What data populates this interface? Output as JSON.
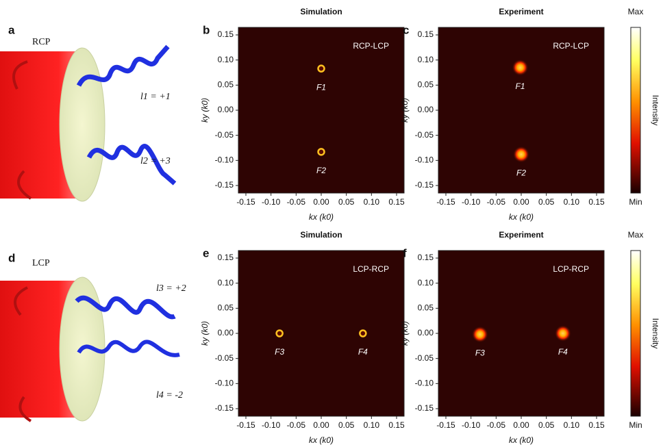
{
  "illustrations": [
    {
      "panel": "a",
      "polarization": "RCP",
      "beams": [
        "l1 = +1",
        "l2 = +3"
      ]
    },
    {
      "panel": "d",
      "polarization": "LCP",
      "beams": [
        "l3 = +2",
        "l4 = -2"
      ]
    }
  ],
  "chart_data": [
    {
      "type": "scatter",
      "panel": "b",
      "title": "Simulation",
      "annotation": "RCP-LCP",
      "x": [
        0,
        0
      ],
      "y": [
        0.083,
        -0.083
      ],
      "point_labels": [
        "F1",
        "F2"
      ],
      "xlabel": "kx (k0)",
      "ylabel": "ky (k0)",
      "xlim": [
        -0.165,
        0.165
      ],
      "ylim": [
        -0.165,
        0.165
      ],
      "xticks": [
        -0.15,
        {
          "value": -0.1,
          "label": "-0.10"
        },
        -0.05,
        {
          "value": 0,
          "label": "0.00"
        },
        0.05,
        {
          "value": 0.1,
          "label": "0.10"
        },
        0.15
      ],
      "yticks": [
        -0.15,
        {
          "value": -0.1,
          "label": "-0.10"
        },
        -0.05,
        {
          "value": 0,
          "label": "0.00"
        },
        0.05,
        {
          "value": 0.1,
          "label": "0.10"
        },
        0.15
      ]
    },
    {
      "type": "scatter",
      "panel": "c",
      "title": "Experiment",
      "annotation": "RCP-LCP",
      "x": [
        -0.002,
        0
      ],
      "y": [
        0.085,
        -0.088
      ],
      "point_labels": [
        "F1",
        "F2"
      ],
      "xlabel": "kx (k0)",
      "ylabel": "ky (k0)",
      "xlim": [
        -0.165,
        0.165
      ],
      "ylim": [
        -0.165,
        0.165
      ],
      "xticks": [
        -0.15,
        {
          "value": -0.1,
          "label": "-0.10"
        },
        -0.05,
        {
          "value": 0,
          "label": "0.00"
        },
        0.05,
        {
          "value": 0.1,
          "label": "0.10"
        },
        0.15
      ],
      "yticks": [
        -0.15,
        {
          "value": -0.1,
          "label": "-0.10"
        },
        -0.05,
        {
          "value": 0,
          "label": "0.00"
        },
        0.05,
        {
          "value": 0.1,
          "label": "0.10"
        },
        0.15
      ],
      "colorbar": {
        "max": "Max",
        "min": "Min",
        "label": "Intensity"
      }
    },
    {
      "type": "scatter",
      "panel": "e",
      "title": "Simulation",
      "annotation": "LCP-RCP",
      "x": [
        -0.083,
        0.083
      ],
      "y": [
        0,
        0
      ],
      "point_labels": [
        "F3",
        "F4"
      ],
      "xlabel": "kx (k0)",
      "ylabel": "ky (k0)",
      "xlim": [
        -0.165,
        0.165
      ],
      "ylim": [
        -0.165,
        0.165
      ],
      "xticks": [
        -0.15,
        {
          "value": -0.1,
          "label": "-0.10"
        },
        -0.05,
        {
          "value": 0,
          "label": "0.00"
        },
        0.05,
        {
          "value": 0.1,
          "label": "0.10"
        },
        0.15
      ],
      "yticks": [
        -0.15,
        {
          "value": -0.1,
          "label": "-0.10"
        },
        -0.05,
        {
          "value": 0,
          "label": "0.00"
        },
        0.05,
        {
          "value": 0.1,
          "label": "0.10"
        },
        0.15
      ]
    },
    {
      "type": "scatter",
      "panel": "f",
      "title": "Experiment",
      "annotation": "LCP-RCP",
      "x": [
        -0.082,
        0.083
      ],
      "y": [
        -0.002,
        0
      ],
      "point_labels": [
        "F3",
        "F4"
      ],
      "xlabel": "kx (k0)",
      "ylabel": "ky (k0)",
      "xlim": [
        -0.165,
        0.165
      ],
      "ylim": [
        -0.165,
        0.165
      ],
      "xticks": [
        -0.15,
        {
          "value": -0.1,
          "label": "-0.10"
        },
        -0.05,
        {
          "value": 0,
          "label": "0.00"
        },
        0.05,
        {
          "value": 0.1,
          "label": "0.10"
        },
        0.15
      ],
      "yticks": [
        -0.15,
        {
          "value": -0.1,
          "label": "-0.10"
        },
        -0.05,
        {
          "value": 0,
          "label": "0.00"
        },
        0.05,
        {
          "value": 0.1,
          "label": "0.10"
        },
        0.15
      ],
      "colorbar": {
        "max": "Max",
        "min": "Min",
        "label": "Intensity"
      }
    }
  ]
}
